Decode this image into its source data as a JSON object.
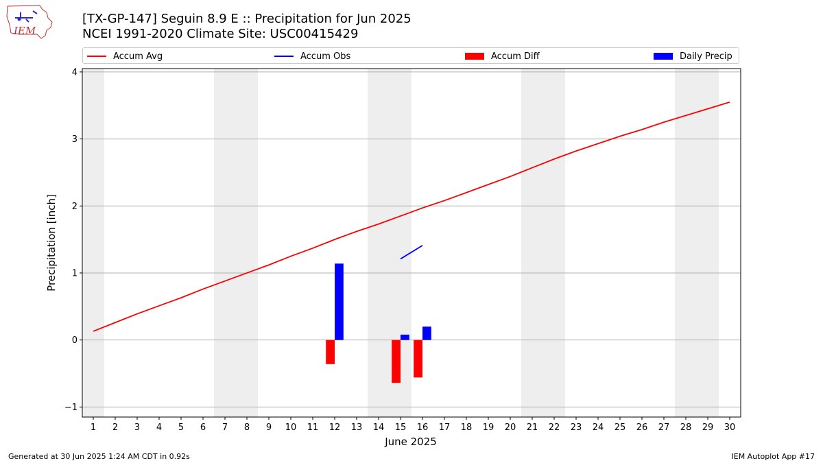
{
  "title": {
    "line1": "[TX-GP-147] Seguin 8.9 E :: Precipitation for Jun 2025",
    "line2": "NCEI 1991-2020 Climate Site: USC00415429"
  },
  "logo": {
    "text": "IEM"
  },
  "legend": [
    {
      "label": "Accum Avg",
      "kind": "line",
      "color": "#ff0000"
    },
    {
      "label": "Accum Obs",
      "kind": "line",
      "color": "#0000ff"
    },
    {
      "label": "Accum Diff",
      "kind": "patch",
      "color": "#ff0000"
    },
    {
      "label": "Daily Precip",
      "kind": "patch",
      "color": "#0000ff"
    }
  ],
  "footer": {
    "left": "Generated at 30 Jun 2025 1:24 AM CDT in 0.92s",
    "right": "IEM Autoplot App #17"
  },
  "chart_data": {
    "type": "bar",
    "xlabel": "June 2025",
    "ylabel": "Precipitation [inch]",
    "xlim": [
      0.5,
      30.5
    ],
    "ylim": [
      -1.15,
      4.05
    ],
    "x_ticks": [
      1,
      2,
      3,
      4,
      5,
      6,
      7,
      8,
      9,
      10,
      11,
      12,
      13,
      14,
      15,
      16,
      17,
      18,
      19,
      20,
      21,
      22,
      23,
      24,
      25,
      26,
      27,
      28,
      29,
      30
    ],
    "y_ticks": [
      -1,
      0,
      1,
      2,
      3,
      4
    ],
    "grid": "horizontal",
    "weekend_shading": [
      [
        1,
        1
      ],
      [
        7,
        8
      ],
      [
        14,
        15
      ],
      [
        21,
        22
      ],
      [
        28,
        29
      ]
    ],
    "series": [
      {
        "name": "Accum Avg",
        "type": "line",
        "color": "#ff0000",
        "x": [
          1,
          2,
          3,
          4,
          5,
          6,
          7,
          8,
          9,
          10,
          11,
          12,
          13,
          14,
          15,
          16,
          17,
          18,
          19,
          20,
          21,
          22,
          23,
          24,
          25,
          26,
          27,
          28,
          29,
          30
        ],
        "values": [
          0.13,
          0.26,
          0.39,
          0.51,
          0.63,
          0.76,
          0.88,
          1.0,
          1.12,
          1.25,
          1.37,
          1.5,
          1.62,
          1.73,
          1.85,
          1.97,
          2.08,
          2.2,
          2.32,
          2.44,
          2.57,
          2.7,
          2.82,
          2.93,
          3.04,
          3.14,
          3.25,
          3.35,
          3.45,
          3.55
        ]
      },
      {
        "name": "Accum Obs",
        "type": "line",
        "color": "#0000ff",
        "x": [
          15,
          16
        ],
        "values": [
          1.21,
          1.41
        ]
      },
      {
        "name": "Accum Diff",
        "type": "bar",
        "color": "#ff0000",
        "x": [
          12,
          15,
          16
        ],
        "values": [
          -0.36,
          -0.64,
          -0.56
        ]
      },
      {
        "name": "Daily Precip",
        "type": "bar",
        "color": "#0000ff",
        "x": [
          12,
          15,
          16
        ],
        "values": [
          1.14,
          0.08,
          0.2
        ]
      }
    ]
  }
}
